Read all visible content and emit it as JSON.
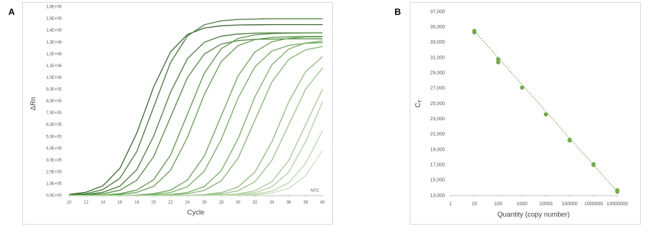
{
  "chart_data": [
    {
      "type": "line",
      "panel_label": "A",
      "x_label": "Cycle",
      "y_label": "ΔRn",
      "annotation": "NTC",
      "x": [
        10,
        12,
        14,
        16,
        18,
        20,
        22,
        24,
        26,
        28,
        30,
        32,
        34,
        36,
        38,
        40
      ],
      "xlim": [
        10,
        40
      ],
      "xticks": [
        10,
        12,
        14,
        16,
        18,
        20,
        22,
        24,
        26,
        28,
        30,
        32,
        34,
        36,
        38,
        40
      ],
      "ylim": [
        0,
        1600000
      ],
      "yticks": [
        {
          "value": 0,
          "label": "0,0E+00"
        },
        {
          "value": 100000,
          "label": "1,0E+05"
        },
        {
          "value": 200000,
          "label": "2,0E+05"
        },
        {
          "value": 300000,
          "label": "3,0E+05"
        },
        {
          "value": 400000,
          "label": "4,0E+05"
        },
        {
          "value": 500000,
          "label": "5,0E+05"
        },
        {
          "value": 600000,
          "label": "6,0E+05"
        },
        {
          "value": 700000,
          "label": "7,0E+05"
        },
        {
          "value": 800000,
          "label": "8,0E+05"
        },
        {
          "value": 900000,
          "label": "9,0E+05"
        },
        {
          "value": 1000000,
          "label": "1,0E+06"
        },
        {
          "value": 1100000,
          "label": "1,1E+06"
        },
        {
          "value": 1200000,
          "label": "1,2E+06"
        },
        {
          "value": 1300000,
          "label": "1,3E+06"
        },
        {
          "value": 1400000,
          "label": "1,4E+06"
        },
        {
          "value": 1500000,
          "label": "1,5E+06"
        },
        {
          "value": 1600000,
          "label": "1,6E+06"
        }
      ],
      "series": [
        {
          "color": "#2e6b24",
          "values": [
            9700,
            29000,
            84000,
            231000,
            529000,
            921000,
            1219000,
            1366000,
            1421000,
            1440000,
            1447000,
            1449000,
            1450000,
            1450000,
            1450000,
            1450000
          ]
        },
        {
          "color": "#3a7a2c",
          "values": [
            5700,
            17000,
            51000,
            147000,
            372000,
            750000,
            1128000,
            1353000,
            1449000,
            1482000,
            1494000,
            1497000,
            1500000,
            1500000,
            1500000,
            1500000
          ]
        },
        {
          "color": "#3f8130",
          "values": [
            3000,
            9200,
            28000,
            80000,
            219000,
            504000,
            876000,
            1161000,
            1300000,
            1352000,
            1370000,
            1377000,
            1379000,
            1380000,
            1380000,
            1380000
          ]
        },
        {
          "color": "#4a8a37",
          "values": [
            1700,
            5100,
            15400,
            45000,
            130000,
            330000,
            665000,
            1000000,
            1200000,
            1285000,
            1314000,
            1325000,
            1327000,
            1330000,
            1330000,
            1330000
          ]
        },
        {
          "color": "#4f9a3c",
          "values": [
            600,
            1800,
            5200,
            16000,
            47000,
            135000,
            342000,
            690000,
            1038000,
            1245000,
            1333000,
            1363000,
            1374000,
            1377000,
            1379000,
            1380000
          ]
        },
        {
          "color": "#5aa046",
          "values": [
            300,
            1000,
            3000,
            9000,
            27000,
            78000,
            215000,
            493000,
            857000,
            1135000,
            1272000,
            1323000,
            1341000,
            1347000,
            1349000,
            1350000
          ]
        },
        {
          "color": "#5ea84a",
          "values": [
            100,
            200,
            500,
            1800,
            5100,
            16000,
            46000,
            132000,
            335000,
            675000,
            1015000,
            1218000,
            1304000,
            1334000,
            1345000,
            1347000
          ]
        },
        {
          "color": "#6aae55",
          "values": [
            0,
            100,
            300,
            900,
            2900,
            8700,
            26000,
            75000,
            207000,
            475000,
            826000,
            1093000,
            1225000,
            1274000,
            1291000,
            1297000
          ]
        },
        {
          "color": "#6fb35a",
          "values": [
            0,
            0,
            100,
            300,
            900,
            2900,
            8800,
            26000,
            77000,
            210000,
            482000,
            838000,
            1110000,
            1243000,
            1294000,
            1311000
          ]
        },
        {
          "color": "#7bb866",
          "values": [
            0,
            0,
            100,
            200,
            500,
            1700,
            4900,
            15000,
            44000,
            125000,
            317000,
            640000,
            963000,
            1155000,
            1236000,
            1265000
          ]
        },
        {
          "color": "#86bf72",
          "values": [
            0,
            0,
            0,
            0,
            100,
            300,
            900,
            2800,
            8400,
            25000,
            73000,
            199000,
            456000,
            794000,
            1051000,
            1178000
          ]
        },
        {
          "color": "#92c57f",
          "values": [
            0,
            0,
            0,
            0,
            0,
            200,
            500,
            1600,
            4600,
            14000,
            41000,
            118000,
            298000,
            600000,
            902000,
            1082000
          ]
        },
        {
          "color": "#9ecc8c",
          "values": [
            0,
            0,
            0,
            0,
            0,
            0,
            200,
            500,
            1600,
            4600,
            14000,
            41000,
            118000,
            298000,
            600000,
            902000
          ]
        },
        {
          "color": "#abd39a",
          "values": [
            0,
            0,
            0,
            0,
            0,
            0,
            100,
            300,
            900,
            2800,
            8400,
            25000,
            73000,
            199000,
            456000,
            794000
          ]
        },
        {
          "color": "#b8daa8",
          "values": [
            0,
            0,
            0,
            0,
            0,
            0,
            0,
            200,
            400,
            1400,
            4200,
            13000,
            37000,
            108000,
            273000,
            550000
          ]
        },
        {
          "color": "#c6e1b8",
          "values": [
            0,
            0,
            0,
            0,
            0,
            0,
            0,
            100,
            300,
            700,
            2300,
            7000,
            21000,
            61000,
            167000,
            383000
          ]
        }
      ]
    },
    {
      "type": "scatter",
      "panel_label": "B",
      "x_label": "Quantity (copy number)",
      "y_label": "C",
      "y_label_sub": "T",
      "log_x": true,
      "color": "#70ad47",
      "x": [
        10,
        10,
        100,
        100,
        1000,
        10000,
        100000,
        100000,
        1000000,
        1000000,
        10000000,
        10000000
      ],
      "values": [
        34500,
        34300,
        30800,
        30400,
        27100,
        23600,
        20300,
        20200,
        17100,
        17000,
        13700,
        13500
      ],
      "trendline": {
        "x": [
          10,
          10000000
        ],
        "values": [
          34500,
          13500
        ]
      },
      "xlim": [
        1,
        10000000
      ],
      "xticks": [
        1,
        10,
        100,
        1000,
        10000,
        100000,
        1000000,
        10000000
      ],
      "ylim": [
        13000,
        37000
      ],
      "yticks": [
        {
          "value": 13000,
          "label": "13,000"
        },
        {
          "value": 15000,
          "label": "15,000"
        },
        {
          "value": 17000,
          "label": "17,000"
        },
        {
          "value": 19000,
          "label": "19,000"
        },
        {
          "value": 21000,
          "label": "21,000"
        },
        {
          "value": 23000,
          "label": "23,000"
        },
        {
          "value": 25000,
          "label": "25,000"
        },
        {
          "value": 27000,
          "label": "27,000"
        },
        {
          "value": 29000,
          "label": "29,000"
        },
        {
          "value": 31000,
          "label": "31,000"
        },
        {
          "value": 33000,
          "label": "33,000"
        },
        {
          "value": 35000,
          "label": "35,000"
        },
        {
          "value": 37000,
          "label": "37,000"
        }
      ]
    }
  ]
}
